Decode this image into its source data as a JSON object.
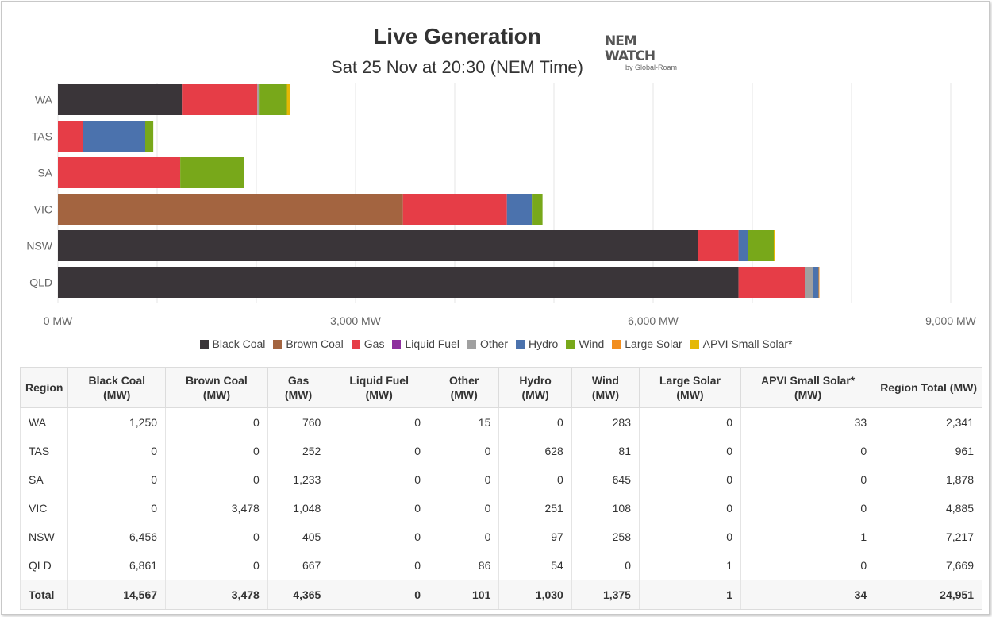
{
  "chart_data": {
    "type": "bar",
    "orientation": "horizontal",
    "stacked": true,
    "title": "Live Generation",
    "subtitle": "Sat 25 Nov at 20:30 (NEM Time)",
    "categories": [
      "WA",
      "TAS",
      "SA",
      "VIC",
      "NSW",
      "QLD"
    ],
    "xlim": [
      0,
      9000
    ],
    "x_ticks": [
      "0 MW",
      "3,000 MW",
      "6,000 MW",
      "9,000 MW"
    ],
    "x_tick_values": [
      0,
      3000,
      6000,
      9000
    ],
    "grid": true,
    "legend_position": "bottom",
    "series": [
      {
        "name": "Black Coal",
        "color": "#3a3539",
        "values": [
          1250,
          0,
          0,
          0,
          6456,
          6861
        ]
      },
      {
        "name": "Brown Coal",
        "color": "#a36440",
        "values": [
          0,
          0,
          0,
          3478,
          0,
          0
        ]
      },
      {
        "name": "Gas",
        "color": "#e63d47",
        "values": [
          760,
          252,
          1233,
          1048,
          405,
          667
        ]
      },
      {
        "name": "Liquid Fuel",
        "color": "#8e2f9e",
        "values": [
          0,
          0,
          0,
          0,
          0,
          0
        ]
      },
      {
        "name": "Other",
        "color": "#a0a0a0",
        "values": [
          15,
          0,
          0,
          0,
          0,
          86
        ]
      },
      {
        "name": "Hydro",
        "color": "#4b72ad",
        "values": [
          0,
          628,
          0,
          251,
          97,
          54
        ]
      },
      {
        "name": "Wind",
        "color": "#78a81a",
        "values": [
          283,
          81,
          645,
          108,
          258,
          0
        ]
      },
      {
        "name": "Large Solar",
        "color": "#f28e1e",
        "values": [
          0,
          0,
          0,
          0,
          0,
          1
        ]
      },
      {
        "name": "APVI Small Solar*",
        "color": "#e5b805",
        "values": [
          33,
          0,
          0,
          0,
          1,
          0
        ]
      }
    ]
  },
  "logo": {
    "line1": "NEM",
    "line2": "WATCH",
    "line3": "by Global-Roam"
  },
  "table": {
    "headers": [
      "Region",
      "Black Coal (MW)",
      "Brown Coal (MW)",
      "Gas (MW)",
      "Liquid Fuel (MW)",
      "Other (MW)",
      "Hydro (MW)",
      "Wind (MW)",
      "Large Solar (MW)",
      "APVI Small Solar* (MW)",
      "Region Total (MW)"
    ],
    "rows": [
      [
        "WA",
        "1,250",
        "0",
        "760",
        "0",
        "15",
        "0",
        "283",
        "0",
        "33",
        "2,341"
      ],
      [
        "TAS",
        "0",
        "0",
        "252",
        "0",
        "0",
        "628",
        "81",
        "0",
        "0",
        "961"
      ],
      [
        "SA",
        "0",
        "0",
        "1,233",
        "0",
        "0",
        "0",
        "645",
        "0",
        "0",
        "1,878"
      ],
      [
        "VIC",
        "0",
        "3,478",
        "1,048",
        "0",
        "0",
        "251",
        "108",
        "0",
        "0",
        "4,885"
      ],
      [
        "NSW",
        "6,456",
        "0",
        "405",
        "0",
        "0",
        "97",
        "258",
        "0",
        "1",
        "7,217"
      ],
      [
        "QLD",
        "6,861",
        "0",
        "667",
        "0",
        "86",
        "54",
        "0",
        "1",
        "0",
        "7,669"
      ]
    ],
    "total": [
      "Total",
      "14,567",
      "3,478",
      "4,365",
      "0",
      "101",
      "1,030",
      "1,375",
      "1",
      "34",
      "24,951"
    ]
  }
}
